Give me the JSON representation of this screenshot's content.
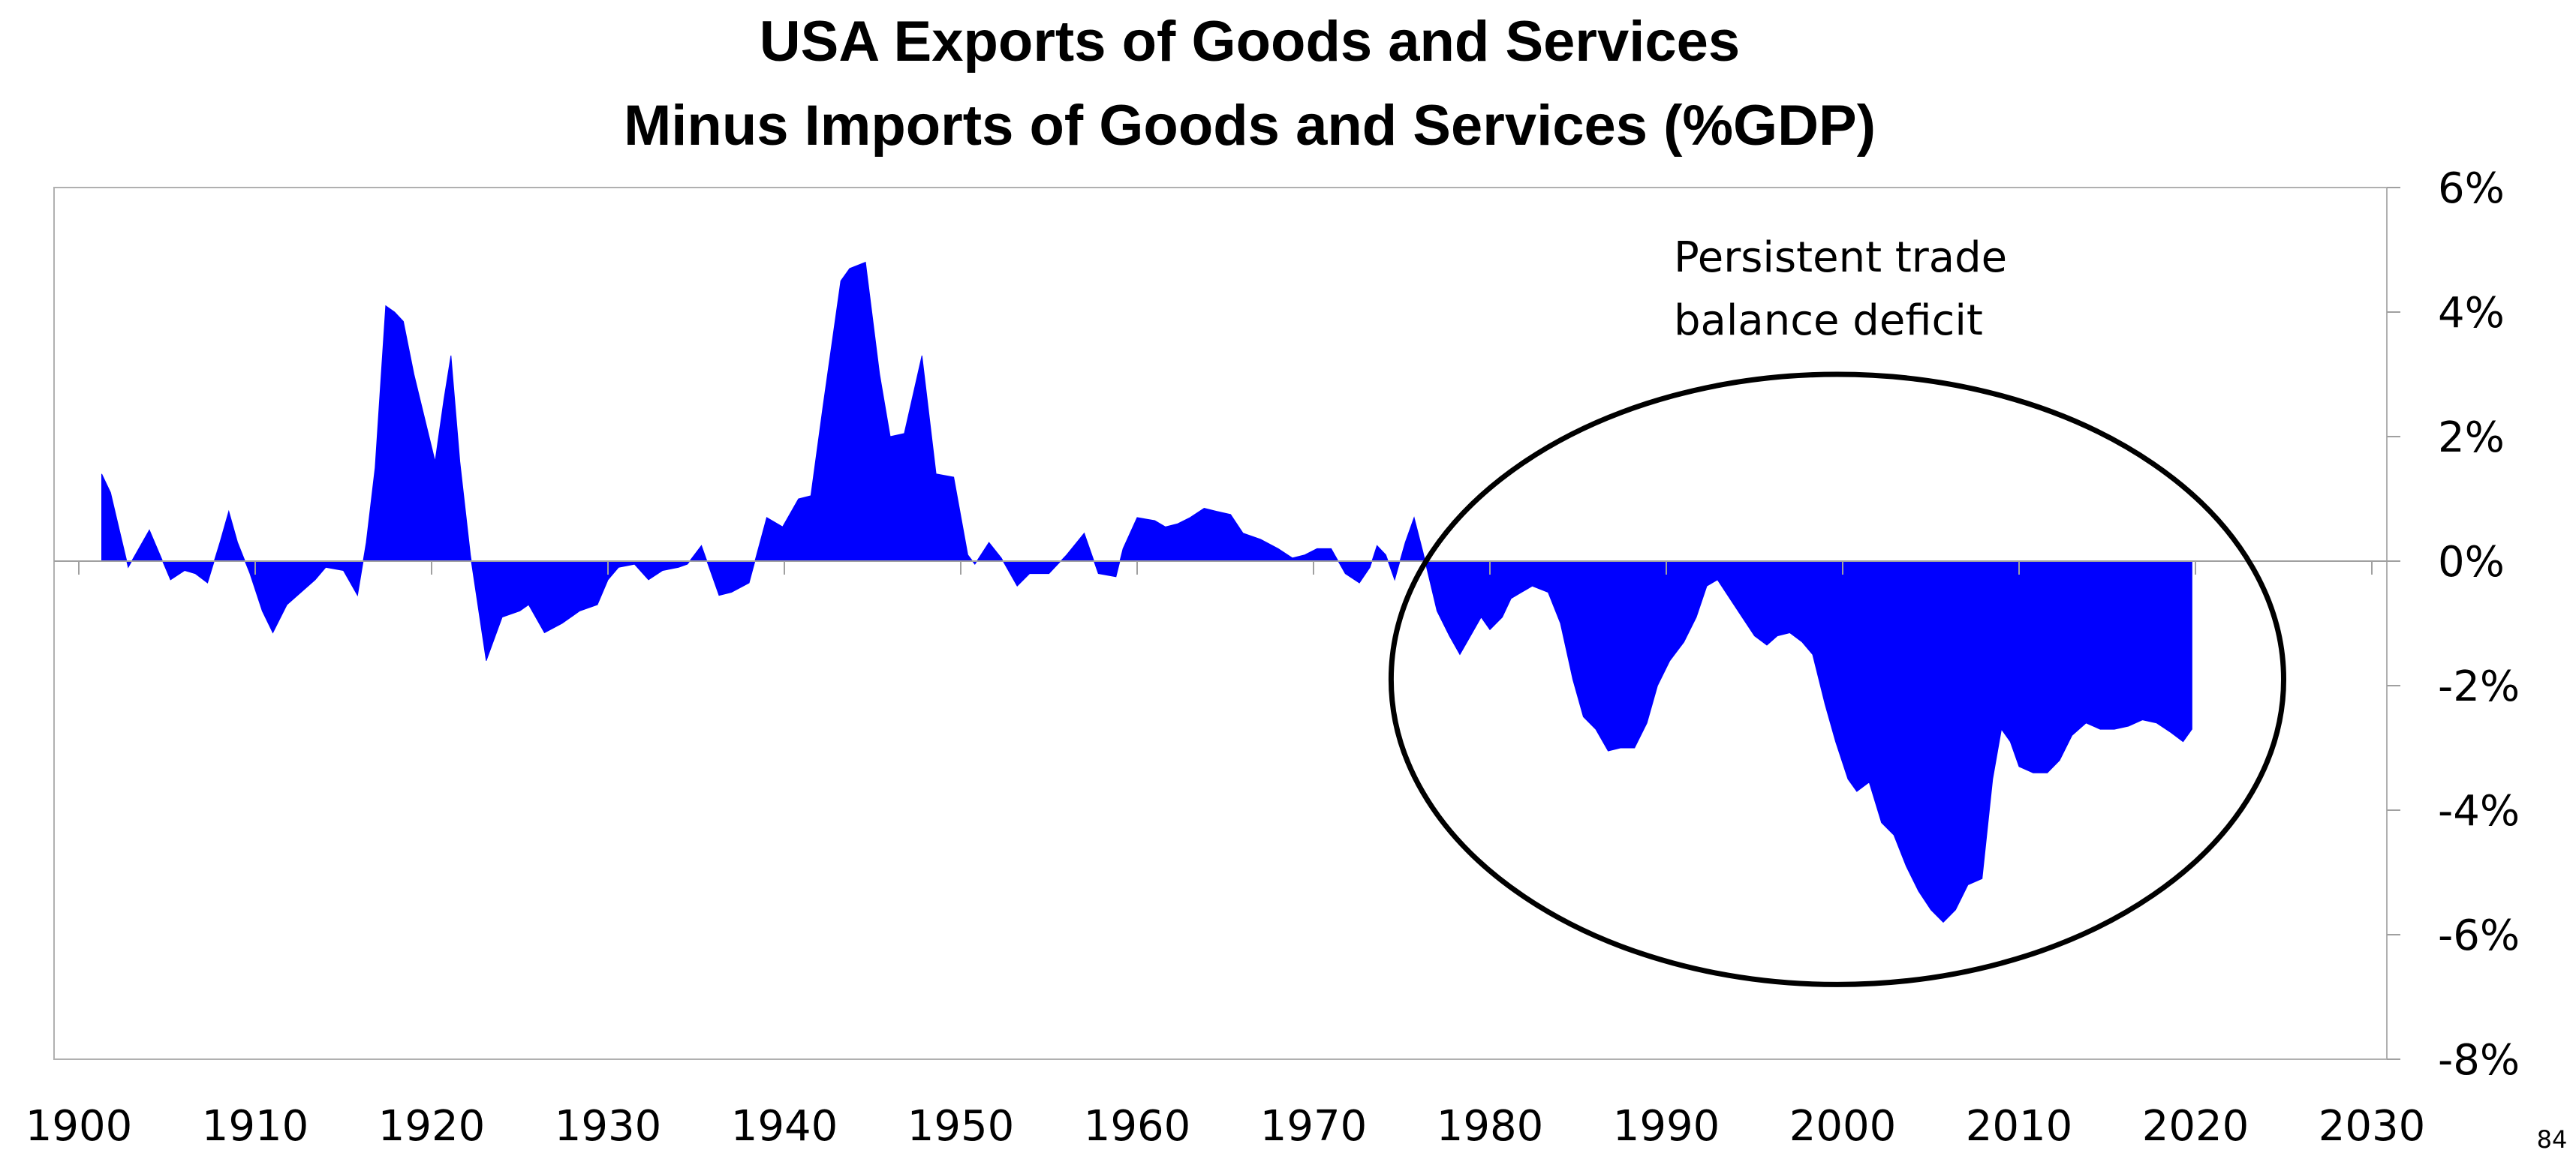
{
  "page_number": "84",
  "chart_data": {
    "type": "area",
    "title_lines": [
      "USA Exports of Goods and Services",
      "Minus Imports of Goods and Services (%GDP)"
    ],
    "xlabel": "",
    "ylabel": "",
    "xlim": [
      1900,
      2030
    ],
    "ylim": [
      -8,
      6
    ],
    "x_ticks": [
      "1900",
      "1910",
      "1920",
      "1930",
      "1940",
      "1950",
      "1960",
      "1970",
      "1980",
      "1990",
      "2000",
      "2010",
      "2020",
      "2030"
    ],
    "y_ticks": [
      "6%",
      "4%",
      "2%",
      "0%",
      "-2%",
      "-4%",
      "-6%",
      "-8%"
    ],
    "y_tick_values": [
      6,
      4,
      2,
      0,
      -2,
      -4,
      -6,
      -8
    ],
    "x_tick_values": [
      1900,
      1910,
      1920,
      1930,
      1940,
      1950,
      1960,
      1970,
      1980,
      1990,
      2000,
      2010,
      2020,
      2030
    ],
    "grid": false,
    "series": [
      {
        "color": "#0000ff",
        "points": [
          [
            1901.3,
            0
          ],
          [
            1901.3,
            1.4
          ],
          [
            1901.8,
            1.1
          ],
          [
            1902.3,
            0.5
          ],
          [
            1902.8,
            -0.1
          ],
          [
            1903.4,
            0.2
          ],
          [
            1904,
            0.5
          ],
          [
            1904.6,
            0.1
          ],
          [
            1905.2,
            -0.3
          ],
          [
            1906,
            -0.15
          ],
          [
            1906.6,
            -0.2
          ],
          [
            1907.3,
            -0.35
          ],
          [
            1908,
            0.3
          ],
          [
            1908.5,
            0.8
          ],
          [
            1909,
            0.3
          ],
          [
            1909.7,
            -0.2
          ],
          [
            1910.4,
            -0.8
          ],
          [
            1911,
            -1.15
          ],
          [
            1911.8,
            -0.7
          ],
          [
            1912.6,
            -0.5
          ],
          [
            1913.4,
            -0.3
          ],
          [
            1914,
            -0.1
          ],
          [
            1915,
            -0.15
          ],
          [
            1915.8,
            -0.55
          ],
          [
            1916.3,
            0.3
          ],
          [
            1916.8,
            1.5
          ],
          [
            1917.4,
            4.1
          ],
          [
            1917.9,
            4.0
          ],
          [
            1918.4,
            3.85
          ],
          [
            1919,
            3.0
          ],
          [
            1919.6,
            2.3
          ],
          [
            1920.2,
            1.6
          ],
          [
            1920.7,
            2.6
          ],
          [
            1921.1,
            3.3
          ],
          [
            1921.6,
            1.6
          ],
          [
            1922.2,
            0.1
          ],
          [
            1923.1,
            -1.6
          ],
          [
            1924,
            -0.9
          ],
          [
            1925,
            -0.8
          ],
          [
            1925.5,
            -0.7
          ],
          [
            1926.4,
            -1.15
          ],
          [
            1927.4,
            -1.0
          ],
          [
            1928.4,
            -0.8
          ],
          [
            1929.4,
            -0.7
          ],
          [
            1930,
            -0.3
          ],
          [
            1930.6,
            -0.1
          ],
          [
            1931.5,
            -0.05
          ],
          [
            1932.3,
            -0.3
          ],
          [
            1933.1,
            -0.15
          ],
          [
            1934,
            -0.1
          ],
          [
            1934.5,
            -0.05
          ],
          [
            1935.3,
            0.25
          ],
          [
            1936.3,
            -0.55
          ],
          [
            1937,
            -0.5
          ],
          [
            1938,
            -0.35
          ],
          [
            1939,
            0.7
          ],
          [
            1939.9,
            0.55
          ],
          [
            1940.8,
            1.0
          ],
          [
            1941.5,
            1.05
          ],
          [
            1942.2,
            2.5
          ],
          [
            1943.2,
            4.5
          ],
          [
            1943.7,
            4.7
          ],
          [
            1944.6,
            4.8
          ],
          [
            1945.4,
            3.0
          ],
          [
            1946,
            2.0
          ],
          [
            1946.8,
            2.05
          ],
          [
            1947.8,
            3.3
          ],
          [
            1948.6,
            1.4
          ],
          [
            1949.6,
            1.35
          ],
          [
            1950.4,
            0.1
          ],
          [
            1950.8,
            -0.05
          ],
          [
            1951.6,
            0.3
          ],
          [
            1952.3,
            0.05
          ],
          [
            1953.2,
            -0.4
          ],
          [
            1953.9,
            -0.2
          ],
          [
            1955,
            -0.2
          ],
          [
            1956,
            0.1
          ],
          [
            1957,
            0.45
          ],
          [
            1957.8,
            -0.2
          ],
          [
            1958.8,
            -0.25
          ],
          [
            1959.2,
            0.2
          ],
          [
            1960,
            0.7
          ],
          [
            1961,
            0.65
          ],
          [
            1961.6,
            0.55
          ],
          [
            1962.3,
            0.6
          ],
          [
            1963,
            0.7
          ],
          [
            1963.8,
            0.85
          ],
          [
            1964.5,
            0.8
          ],
          [
            1965.3,
            0.75
          ],
          [
            1966,
            0.45
          ],
          [
            1967,
            0.35
          ],
          [
            1968,
            0.2
          ],
          [
            1968.8,
            0.05
          ],
          [
            1969.5,
            0.1
          ],
          [
            1970.2,
            0.2
          ],
          [
            1971,
            0.2
          ],
          [
            1971.8,
            -0.2
          ],
          [
            1972.6,
            -0.35
          ],
          [
            1973.2,
            -0.1
          ],
          [
            1973.6,
            0.25
          ],
          [
            1974.1,
            0.1
          ],
          [
            1974.6,
            -0.3
          ],
          [
            1975.2,
            0.3
          ],
          [
            1975.7,
            0.7
          ],
          [
            1976.2,
            0.15
          ],
          [
            1977,
            -0.8
          ],
          [
            1977.7,
            -1.2
          ],
          [
            1978.3,
            -1.5
          ],
          [
            1978.9,
            -1.2
          ],
          [
            1979.5,
            -0.9
          ],
          [
            1980,
            -1.1
          ],
          [
            1980.7,
            -0.9
          ],
          [
            1981.2,
            -0.6
          ],
          [
            1981.8,
            -0.5
          ],
          [
            1982.4,
            -0.4
          ],
          [
            1983.3,
            -0.5
          ],
          [
            1984,
            -1.0
          ],
          [
            1984.7,
            -1.9
          ],
          [
            1985.3,
            -2.5
          ],
          [
            1986,
            -2.7
          ],
          [
            1986.7,
            -3.05
          ],
          [
            1987.4,
            -3.0
          ],
          [
            1988.2,
            -3.0
          ],
          [
            1988.9,
            -2.6
          ],
          [
            1989.5,
            -2.0
          ],
          [
            1990.2,
            -1.6
          ],
          [
            1991,
            -1.3
          ],
          [
            1991.7,
            -0.9
          ],
          [
            1992.3,
            -0.4
          ],
          [
            1992.9,
            -0.3
          ],
          [
            1993.6,
            -0.6
          ],
          [
            1994.3,
            -0.9
          ],
          [
            1995,
            -1.2
          ],
          [
            1995.7,
            -1.35
          ],
          [
            1996.3,
            -1.2
          ],
          [
            1997,
            -1.15
          ],
          [
            1997.7,
            -1.3
          ],
          [
            1998.3,
            -1.5
          ],
          [
            1999,
            -2.3
          ],
          [
            1999.6,
            -2.9
          ],
          [
            2000.3,
            -3.5
          ],
          [
            2000.8,
            -3.7
          ],
          [
            2001.5,
            -3.55
          ],
          [
            2002.2,
            -4.2
          ],
          [
            2002.9,
            -4.4
          ],
          [
            2003.6,
            -4.9
          ],
          [
            2004.3,
            -5.3
          ],
          [
            2005,
            -5.6
          ],
          [
            2005.7,
            -5.8
          ],
          [
            2006.4,
            -5.6
          ],
          [
            2007.1,
            -5.2
          ],
          [
            2007.9,
            -5.1
          ],
          [
            2008.5,
            -3.5
          ],
          [
            2009,
            -2.7
          ],
          [
            2009.5,
            -2.9
          ],
          [
            2010,
            -3.3
          ],
          [
            2010.8,
            -3.4
          ],
          [
            2011.6,
            -3.4
          ],
          [
            2012.3,
            -3.2
          ],
          [
            2013,
            -2.8
          ],
          [
            2013.8,
            -2.6
          ],
          [
            2014.6,
            -2.7
          ],
          [
            2015.4,
            -2.7
          ],
          [
            2016.2,
            -2.65
          ],
          [
            2017,
            -2.55
          ],
          [
            2017.8,
            -2.6
          ],
          [
            2018.6,
            -2.75
          ],
          [
            2019.3,
            -2.9
          ],
          [
            2019.8,
            -2.7
          ],
          [
            2019.8,
            0
          ]
        ]
      }
    ],
    "annotation": {
      "lines": [
        "Persistent trade",
        "balance deficit"
      ],
      "ellipse": {
        "center_x": 1999.7,
        "center_y": -1.9,
        "radius_x": 25.3,
        "radius_y": 4.9
      }
    }
  }
}
